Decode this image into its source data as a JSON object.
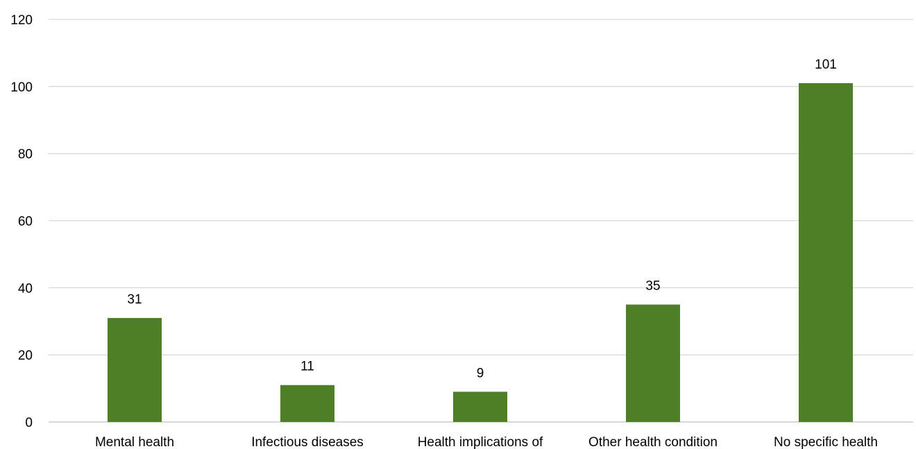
{
  "chart_data": {
    "type": "bar",
    "categories": [
      "Mental health",
      "Infectious diseases",
      "Health implications of",
      "Other health condition",
      "No specific health"
    ],
    "values": [
      31,
      11,
      9,
      35,
      101
    ],
    "ylim": [
      0,
      120
    ],
    "yticks": [
      0,
      20,
      40,
      60,
      80,
      100,
      120
    ],
    "grid": true,
    "data_labels": true,
    "colors": {
      "bar": "#4c7f26",
      "grid": "#d9d9d9",
      "text": "#000000"
    }
  }
}
